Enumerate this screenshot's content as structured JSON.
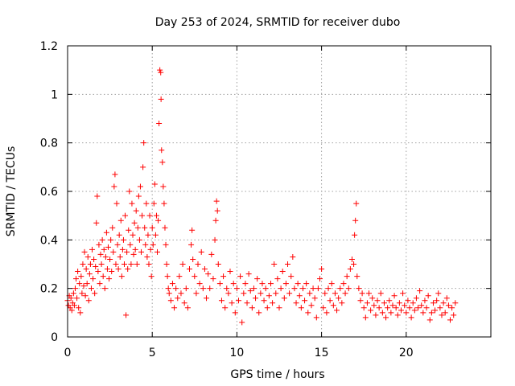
{
  "chart_data": {
    "type": "scatter",
    "title": "Day 253 of 2024, SRMTID for receiver dubo",
    "xlabel": "GPS time / hours",
    "ylabel": "SRMTID / TECUs",
    "xlim": [
      0,
      25
    ],
    "ylim": [
      0,
      1.2
    ],
    "xticks": [
      0,
      5,
      10,
      15,
      20
    ],
    "xtick_labels": [
      "0",
      "5",
      "10",
      "15",
      "20"
    ],
    "yticks": [
      0,
      0.2,
      0.4,
      0.6,
      0.8,
      1.0,
      1.2
    ],
    "ytick_labels": [
      "0",
      "0.2",
      "0.4",
      "0.6",
      "0.8",
      "1",
      "1.2"
    ],
    "grid": true,
    "marker": "plus",
    "color": "#ff0000",
    "series": [
      {
        "name": "SRMTID",
        "points": [
          [
            0.0,
            0.15
          ],
          [
            0.05,
            0.13
          ],
          [
            0.1,
            0.17
          ],
          [
            0.15,
            0.12
          ],
          [
            0.2,
            0.16
          ],
          [
            0.25,
            0.11
          ],
          [
            0.3,
            0.14
          ],
          [
            0.35,
            0.18
          ],
          [
            0.4,
            0.13
          ],
          [
            0.45,
            0.2
          ],
          [
            0.5,
            0.24
          ],
          [
            0.55,
            0.16
          ],
          [
            0.6,
            0.27
          ],
          [
            0.65,
            0.12
          ],
          [
            0.7,
            0.22
          ],
          [
            0.75,
            0.1
          ],
          [
            0.8,
            0.25
          ],
          [
            0.85,
            0.18
          ],
          [
            0.9,
            0.3
          ],
          [
            0.95,
            0.21
          ],
          [
            1.0,
            0.35
          ],
          [
            1.05,
            0.17
          ],
          [
            1.1,
            0.28
          ],
          [
            1.15,
            0.22
          ],
          [
            1.2,
            0.33
          ],
          [
            1.25,
            0.15
          ],
          [
            1.3,
            0.26
          ],
          [
            1.35,
            0.3
          ],
          [
            1.4,
            0.2
          ],
          [
            1.45,
            0.36
          ],
          [
            1.5,
            0.24
          ],
          [
            1.55,
            0.32
          ],
          [
            1.6,
            0.18
          ],
          [
            1.65,
            0.29
          ],
          [
            1.7,
            0.47
          ],
          [
            1.75,
            0.58
          ],
          [
            1.8,
            0.27
          ],
          [
            1.85,
            0.38
          ],
          [
            1.9,
            0.22
          ],
          [
            1.95,
            0.34
          ],
          [
            2.0,
            0.3
          ],
          [
            2.05,
            0.4
          ],
          [
            2.1,
            0.25
          ],
          [
            2.15,
            0.36
          ],
          [
            2.2,
            0.2
          ],
          [
            2.25,
            0.33
          ],
          [
            2.3,
            0.43
          ],
          [
            2.35,
            0.28
          ],
          [
            2.4,
            0.37
          ],
          [
            2.45,
            0.24
          ],
          [
            2.5,
            0.32
          ],
          [
            2.55,
            0.4
          ],
          [
            2.6,
            0.27
          ],
          [
            2.65,
            0.45
          ],
          [
            2.7,
            0.35
          ],
          [
            2.75,
            0.62
          ],
          [
            2.8,
            0.67
          ],
          [
            2.85,
            0.3
          ],
          [
            2.9,
            0.55
          ],
          [
            2.95,
            0.38
          ],
          [
            3.0,
            0.28
          ],
          [
            3.05,
            0.42
          ],
          [
            3.1,
            0.33
          ],
          [
            3.15,
            0.48
          ],
          [
            3.2,
            0.25
          ],
          [
            3.25,
            0.36
          ],
          [
            3.3,
            0.4
          ],
          [
            3.35,
            0.3
          ],
          [
            3.4,
            0.5
          ],
          [
            3.45,
            0.09
          ],
          [
            3.5,
            0.35
          ],
          [
            3.55,
            0.28
          ],
          [
            3.6,
            0.44
          ],
          [
            3.65,
            0.6
          ],
          [
            3.7,
            0.38
          ],
          [
            3.75,
            0.3
          ],
          [
            3.8,
            0.55
          ],
          [
            3.85,
            0.42
          ],
          [
            3.9,
            0.34
          ],
          [
            3.95,
            0.47
          ],
          [
            4.0,
            0.36
          ],
          [
            4.05,
            0.52
          ],
          [
            4.1,
            0.3
          ],
          [
            4.15,
            0.45
          ],
          [
            4.2,
            0.58
          ],
          [
            4.25,
            0.4
          ],
          [
            4.3,
            0.62
          ],
          [
            4.35,
            0.35
          ],
          [
            4.4,
            0.5
          ],
          [
            4.45,
            0.7
          ],
          [
            4.5,
            0.8
          ],
          [
            4.55,
            0.45
          ],
          [
            4.6,
            0.38
          ],
          [
            4.65,
            0.55
          ],
          [
            4.7,
            0.33
          ],
          [
            4.75,
            0.42
          ],
          [
            4.8,
            0.3
          ],
          [
            4.85,
            0.5
          ],
          [
            4.9,
            0.36
          ],
          [
            4.95,
            0.25
          ],
          [
            5.0,
            0.45
          ],
          [
            5.05,
            0.38
          ],
          [
            5.1,
            0.55
          ],
          [
            5.15,
            0.63
          ],
          [
            5.2,
            0.42
          ],
          [
            5.25,
            0.5
          ],
          [
            5.3,
            0.35
          ],
          [
            5.35,
            0.48
          ],
          [
            5.4,
            0.88
          ],
          [
            5.45,
            1.1
          ],
          [
            5.5,
            1.09
          ],
          [
            5.52,
            0.98
          ],
          [
            5.55,
            0.77
          ],
          [
            5.6,
            0.72
          ],
          [
            5.65,
            0.62
          ],
          [
            5.7,
            0.55
          ],
          [
            5.75,
            0.45
          ],
          [
            5.8,
            0.38
          ],
          [
            5.85,
            0.3
          ],
          [
            5.9,
            0.25
          ],
          [
            5.95,
            0.2
          ],
          [
            6.0,
            0.18
          ],
          [
            6.1,
            0.15
          ],
          [
            6.2,
            0.22
          ],
          [
            6.3,
            0.12
          ],
          [
            6.4,
            0.2
          ],
          [
            6.5,
            0.16
          ],
          [
            6.6,
            0.25
          ],
          [
            6.7,
            0.18
          ],
          [
            6.8,
            0.3
          ],
          [
            6.9,
            0.14
          ],
          [
            7.0,
            0.2
          ],
          [
            7.1,
            0.12
          ],
          [
            7.2,
            0.28
          ],
          [
            7.3,
            0.38
          ],
          [
            7.35,
            0.44
          ],
          [
            7.4,
            0.32
          ],
          [
            7.5,
            0.25
          ],
          [
            7.6,
            0.18
          ],
          [
            7.7,
            0.3
          ],
          [
            7.8,
            0.22
          ],
          [
            7.9,
            0.35
          ],
          [
            8.0,
            0.2
          ],
          [
            8.1,
            0.28
          ],
          [
            8.2,
            0.16
          ],
          [
            8.3,
            0.26
          ],
          [
            8.4,
            0.2
          ],
          [
            8.5,
            0.34
          ],
          [
            8.6,
            0.24
          ],
          [
            8.7,
            0.4
          ],
          [
            8.75,
            0.48
          ],
          [
            8.8,
            0.56
          ],
          [
            8.85,
            0.52
          ],
          [
            8.9,
            0.3
          ],
          [
            9.0,
            0.22
          ],
          [
            9.1,
            0.15
          ],
          [
            9.2,
            0.25
          ],
          [
            9.3,
            0.12
          ],
          [
            9.4,
            0.2
          ],
          [
            9.5,
            0.18
          ],
          [
            9.6,
            0.27
          ],
          [
            9.7,
            0.14
          ],
          [
            9.8,
            0.22
          ],
          [
            9.9,
            0.1
          ],
          [
            10.0,
            0.2
          ],
          [
            10.1,
            0.15
          ],
          [
            10.2,
            0.25
          ],
          [
            10.3,
            0.06
          ],
          [
            10.4,
            0.18
          ],
          [
            10.5,
            0.22
          ],
          [
            10.6,
            0.14
          ],
          [
            10.7,
            0.26
          ],
          [
            10.8,
            0.19
          ],
          [
            10.9,
            0.12
          ],
          [
            11.0,
            0.2
          ],
          [
            11.1,
            0.16
          ],
          [
            11.2,
            0.24
          ],
          [
            11.3,
            0.1
          ],
          [
            11.4,
            0.18
          ],
          [
            11.5,
            0.22
          ],
          [
            11.6,
            0.15
          ],
          [
            11.7,
            0.2
          ],
          [
            11.8,
            0.12
          ],
          [
            11.9,
            0.17
          ],
          [
            12.0,
            0.22
          ],
          [
            12.1,
            0.14
          ],
          [
            12.2,
            0.3
          ],
          [
            12.3,
            0.18
          ],
          [
            12.4,
            0.24
          ],
          [
            12.5,
            0.12
          ],
          [
            12.6,
            0.2
          ],
          [
            12.7,
            0.27
          ],
          [
            12.8,
            0.16
          ],
          [
            12.9,
            0.22
          ],
          [
            13.0,
            0.3
          ],
          [
            13.1,
            0.18
          ],
          [
            13.2,
            0.25
          ],
          [
            13.3,
            0.33
          ],
          [
            13.4,
            0.2
          ],
          [
            13.5,
            0.14
          ],
          [
            13.6,
            0.22
          ],
          [
            13.7,
            0.17
          ],
          [
            13.8,
            0.12
          ],
          [
            13.9,
            0.2
          ],
          [
            14.0,
            0.15
          ],
          [
            14.1,
            0.22
          ],
          [
            14.2,
            0.1
          ],
          [
            14.3,
            0.18
          ],
          [
            14.4,
            0.13
          ],
          [
            14.5,
            0.2
          ],
          [
            14.6,
            0.16
          ],
          [
            14.7,
            0.08
          ],
          [
            14.8,
            0.2
          ],
          [
            14.9,
            0.24
          ],
          [
            15.0,
            0.28
          ],
          [
            15.1,
            0.12
          ],
          [
            15.2,
            0.18
          ],
          [
            15.3,
            0.1
          ],
          [
            15.4,
            0.2
          ],
          [
            15.5,
            0.15
          ],
          [
            15.6,
            0.22
          ],
          [
            15.7,
            0.13
          ],
          [
            15.8,
            0.18
          ],
          [
            15.9,
            0.11
          ],
          [
            16.0,
            0.16
          ],
          [
            16.1,
            0.2
          ],
          [
            16.2,
            0.14
          ],
          [
            16.3,
            0.22
          ],
          [
            16.4,
            0.18
          ],
          [
            16.5,
            0.25
          ],
          [
            16.6,
            0.2
          ],
          [
            16.7,
            0.28
          ],
          [
            16.8,
            0.32
          ],
          [
            16.9,
            0.3
          ],
          [
            16.95,
            0.42
          ],
          [
            17.0,
            0.48
          ],
          [
            17.05,
            0.55
          ],
          [
            17.1,
            0.25
          ],
          [
            17.2,
            0.2
          ],
          [
            17.3,
            0.15
          ],
          [
            17.4,
            0.18
          ],
          [
            17.5,
            0.12
          ],
          [
            17.6,
            0.08
          ],
          [
            17.7,
            0.14
          ],
          [
            17.8,
            0.18
          ],
          [
            17.9,
            0.11
          ],
          [
            18.0,
            0.16
          ],
          [
            18.1,
            0.13
          ],
          [
            18.2,
            0.09
          ],
          [
            18.3,
            0.15
          ],
          [
            18.4,
            0.12
          ],
          [
            18.5,
            0.18
          ],
          [
            18.6,
            0.1
          ],
          [
            18.7,
            0.14
          ],
          [
            18.8,
            0.08
          ],
          [
            18.9,
            0.12
          ],
          [
            19.0,
            0.15
          ],
          [
            19.1,
            0.1
          ],
          [
            19.2,
            0.13
          ],
          [
            19.3,
            0.17
          ],
          [
            19.4,
            0.12
          ],
          [
            19.5,
            0.09
          ],
          [
            19.6,
            0.14
          ],
          [
            19.7,
            0.11
          ],
          [
            19.8,
            0.18
          ],
          [
            19.9,
            0.13
          ],
          [
            20.0,
            0.1
          ],
          [
            20.1,
            0.15
          ],
          [
            20.2,
            0.12
          ],
          [
            20.3,
            0.08
          ],
          [
            20.4,
            0.14
          ],
          [
            20.5,
            0.11
          ],
          [
            20.6,
            0.16
          ],
          [
            20.7,
            0.12
          ],
          [
            20.8,
            0.19
          ],
          [
            20.9,
            0.13
          ],
          [
            21.0,
            0.1
          ],
          [
            21.1,
            0.15
          ],
          [
            21.2,
            0.12
          ],
          [
            21.3,
            0.17
          ],
          [
            21.4,
            0.07
          ],
          [
            21.5,
            0.1
          ],
          [
            21.6,
            0.14
          ],
          [
            21.7,
            0.11
          ],
          [
            21.8,
            0.15
          ],
          [
            21.9,
            0.18
          ],
          [
            22.0,
            0.12
          ],
          [
            22.1,
            0.09
          ],
          [
            22.2,
            0.14
          ],
          [
            22.3,
            0.1
          ],
          [
            22.4,
            0.16
          ],
          [
            22.5,
            0.13
          ],
          [
            22.6,
            0.07
          ],
          [
            22.7,
            0.12
          ],
          [
            22.8,
            0.09
          ],
          [
            22.9,
            0.14
          ]
        ]
      }
    ]
  }
}
